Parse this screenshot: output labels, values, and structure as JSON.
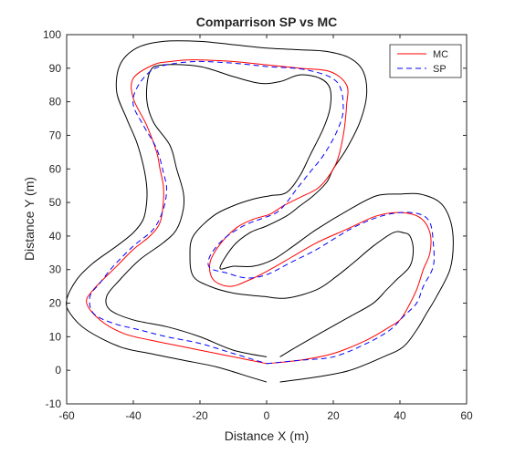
{
  "chart_data": {
    "type": "line",
    "title": "Comparrison SP vs MC",
    "xlabel": "Distance X (m)",
    "ylabel": "Distance Y (m)",
    "xlim": [
      -60,
      60
    ],
    "ylim": [
      -10,
      100
    ],
    "xticks": [
      -60,
      -40,
      -20,
      0,
      20,
      40,
      60
    ],
    "yticks": [
      -10,
      0,
      10,
      20,
      30,
      40,
      50,
      60,
      70,
      80,
      90,
      100
    ],
    "grid": false,
    "legend": {
      "position": "top-right",
      "entries": [
        "MC",
        "SP"
      ]
    },
    "series": [
      {
        "name": "MC",
        "color": "#ff0000",
        "dash": "solid",
        "points": [
          [
            0,
            2
          ],
          [
            10,
            3
          ],
          [
            20,
            5
          ],
          [
            30,
            9
          ],
          [
            37,
            13
          ],
          [
            40,
            15
          ],
          [
            42,
            18
          ],
          [
            45,
            24
          ],
          [
            47,
            30
          ],
          [
            49,
            35
          ],
          [
            49,
            41
          ],
          [
            46,
            45.5
          ],
          [
            40,
            47
          ],
          [
            33,
            46
          ],
          [
            24,
            42
          ],
          [
            15,
            38
          ],
          [
            8,
            34
          ],
          [
            1,
            30
          ],
          [
            -5,
            27
          ],
          [
            -11,
            25
          ],
          [
            -16,
            27
          ],
          [
            -17,
            32
          ],
          [
            -14,
            37.5
          ],
          [
            -9,
            42.5
          ],
          [
            -4,
            45
          ],
          [
            1,
            46.5
          ],
          [
            5,
            49
          ],
          [
            10,
            51.5
          ],
          [
            15,
            54
          ],
          [
            18,
            57
          ],
          [
            21,
            62
          ],
          [
            23,
            70
          ],
          [
            24,
            79
          ],
          [
            24,
            85
          ],
          [
            19,
            89
          ],
          [
            10,
            90
          ],
          [
            0,
            91
          ],
          [
            -10,
            92
          ],
          [
            -22,
            92.5
          ],
          [
            -29,
            92
          ],
          [
            -34,
            91
          ],
          [
            -40,
            87
          ],
          [
            -40,
            81
          ],
          [
            -36,
            73
          ],
          [
            -33,
            65
          ],
          [
            -32,
            60
          ],
          [
            -31,
            55
          ],
          [
            -31,
            50
          ],
          [
            -32,
            44
          ],
          [
            -35,
            40
          ],
          [
            -40,
            36
          ],
          [
            -45,
            31
          ],
          [
            -52,
            24
          ],
          [
            -54,
            20
          ],
          [
            -50,
            15
          ],
          [
            -43,
            11
          ],
          [
            -35,
            9
          ],
          [
            -25,
            7
          ],
          [
            -15,
            5
          ],
          [
            -5,
            3
          ],
          [
            0,
            2
          ]
        ]
      },
      {
        "name": "SP",
        "color": "#0000ff",
        "dash": "dashed",
        "points": [
          [
            0,
            2
          ],
          [
            10,
            3
          ],
          [
            20,
            4
          ],
          [
            30,
            8
          ],
          [
            37,
            12
          ],
          [
            41,
            16
          ],
          [
            45,
            20
          ],
          [
            47,
            25
          ],
          [
            50,
            31
          ],
          [
            50,
            38
          ],
          [
            49,
            44
          ],
          [
            46,
            46.5
          ],
          [
            40,
            47
          ],
          [
            33,
            45.5
          ],
          [
            25,
            42
          ],
          [
            15,
            36
          ],
          [
            7,
            32
          ],
          [
            0,
            28.5
          ],
          [
            -6,
            27.5
          ],
          [
            -12,
            29
          ],
          [
            -17,
            30.5
          ],
          [
            -17,
            34
          ],
          [
            -13,
            39
          ],
          [
            -7,
            43
          ],
          [
            -2,
            45
          ],
          [
            3,
            47
          ],
          [
            6,
            50
          ],
          [
            9,
            54
          ],
          [
            13,
            59
          ],
          [
            17,
            64
          ],
          [
            21,
            71
          ],
          [
            23,
            78
          ],
          [
            21,
            86
          ],
          [
            12,
            89.5
          ],
          [
            0,
            90.5
          ],
          [
            -10,
            91.5
          ],
          [
            -21,
            92
          ],
          [
            -30,
            91
          ],
          [
            -35,
            89
          ],
          [
            -39,
            84
          ],
          [
            -40,
            79
          ],
          [
            -37,
            73
          ],
          [
            -33,
            66
          ],
          [
            -31,
            59
          ],
          [
            -30,
            54
          ],
          [
            -31,
            48
          ],
          [
            -34,
            42
          ],
          [
            -40,
            37
          ],
          [
            -46,
            31
          ],
          [
            -50,
            26
          ],
          [
            -53,
            22
          ],
          [
            -52,
            17
          ],
          [
            -46,
            14
          ],
          [
            -38,
            12
          ],
          [
            -30,
            10
          ],
          [
            -20,
            8
          ],
          [
            -10,
            5
          ],
          [
            0,
            2
          ]
        ]
      }
    ],
    "track_boundaries": [
      {
        "name": "outer-track-boundary",
        "color": "#000000",
        "points": [
          [
            4,
            -3.5
          ],
          [
            15,
            -2
          ],
          [
            25,
            0
          ],
          [
            35,
            4
          ],
          [
            41,
            7
          ],
          [
            45,
            12
          ],
          [
            48,
            17
          ],
          [
            51,
            22
          ],
          [
            55,
            30
          ],
          [
            56,
            38
          ],
          [
            55,
            45
          ],
          [
            52,
            50
          ],
          [
            46,
            52.5
          ],
          [
            40,
            52.5
          ],
          [
            33,
            52
          ],
          [
            25,
            48
          ],
          [
            15,
            42
          ],
          [
            8,
            37
          ],
          [
            2,
            33
          ],
          [
            -4,
            31
          ],
          [
            -10,
            31
          ],
          [
            -14,
            30.5
          ],
          [
            -10,
            37
          ],
          [
            -5,
            41
          ],
          [
            0,
            43
          ],
          [
            6,
            46
          ],
          [
            10,
            49
          ],
          [
            14,
            52
          ],
          [
            18,
            56
          ],
          [
            20,
            60
          ],
          [
            24,
            66
          ],
          [
            28,
            74
          ],
          [
            30,
            82
          ],
          [
            29,
            89
          ],
          [
            25,
            93
          ],
          [
            18,
            95
          ],
          [
            10,
            95.5
          ],
          [
            0,
            96
          ],
          [
            -10,
            97
          ],
          [
            -20,
            98
          ],
          [
            -31,
            98
          ],
          [
            -39,
            96
          ],
          [
            -44,
            91
          ],
          [
            -45,
            83
          ],
          [
            -42,
            75
          ],
          [
            -39,
            68
          ],
          [
            -37,
            61
          ],
          [
            -36,
            55
          ],
          [
            -36,
            50
          ],
          [
            -37,
            45
          ],
          [
            -40,
            41
          ],
          [
            -45,
            37
          ],
          [
            -52,
            32
          ],
          [
            -57,
            27
          ],
          [
            -60,
            21
          ],
          [
            -59,
            17
          ],
          [
            -54,
            12
          ],
          [
            -44,
            7
          ],
          [
            -35,
            5
          ],
          [
            -25,
            3
          ],
          [
            -15,
            1
          ],
          [
            -5,
            -2
          ],
          [
            0,
            -3.5
          ]
        ]
      },
      {
        "name": "inner-track-boundary",
        "color": "#000000",
        "points": [
          [
            0,
            4
          ],
          [
            -10,
            6
          ],
          [
            -20,
            10
          ],
          [
            -30,
            13
          ],
          [
            -40,
            15
          ],
          [
            -47,
            18
          ],
          [
            -48,
            22
          ],
          [
            -44,
            27
          ],
          [
            -38,
            33
          ],
          [
            -31,
            38
          ],
          [
            -27,
            42
          ],
          [
            -25,
            48
          ],
          [
            -25,
            53
          ],
          [
            -27,
            60
          ],
          [
            -29,
            67
          ],
          [
            -34,
            74
          ],
          [
            -36,
            81
          ],
          [
            -35,
            89
          ],
          [
            -31,
            91
          ],
          [
            -20,
            90.5
          ],
          [
            -10,
            87.5
          ],
          [
            -2,
            85.5
          ],
          [
            4,
            86
          ],
          [
            10,
            88
          ],
          [
            16,
            87
          ],
          [
            19,
            84
          ],
          [
            19,
            78
          ],
          [
            17,
            72
          ],
          [
            13,
            64
          ],
          [
            10,
            58
          ],
          [
            6,
            53
          ],
          [
            1,
            52
          ],
          [
            -4,
            51
          ],
          [
            -10,
            49
          ],
          [
            -16,
            46
          ],
          [
            -22,
            40
          ],
          [
            -23,
            34
          ],
          [
            -22,
            28
          ],
          [
            -17,
            25
          ],
          [
            -10,
            23
          ],
          [
            -1,
            22
          ],
          [
            6,
            21.5
          ],
          [
            15,
            24
          ],
          [
            21,
            28
          ],
          [
            26,
            32
          ],
          [
            32,
            37
          ],
          [
            38,
            41
          ],
          [
            41,
            41
          ],
          [
            43,
            40
          ],
          [
            44,
            36
          ],
          [
            43,
            31
          ],
          [
            39,
            27
          ],
          [
            36,
            24
          ],
          [
            32,
            20
          ],
          [
            25,
            16
          ],
          [
            16,
            11
          ],
          [
            9,
            7
          ],
          [
            4,
            4
          ]
        ]
      }
    ]
  }
}
